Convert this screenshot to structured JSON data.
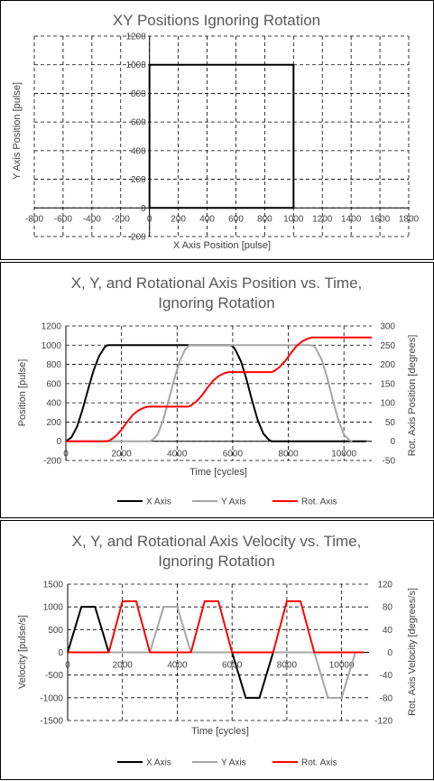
{
  "chart_data": [
    {
      "type": "line",
      "title": "XY Positions Ignoring Rotation",
      "xlabel": "X Axis Position [pulse]",
      "ylabel": "Y Axis Position [pulse]",
      "xlim": [
        -800,
        1800
      ],
      "ylim": [
        -200,
        1200
      ],
      "xticks": [
        -800,
        -600,
        -400,
        -200,
        0,
        200,
        400,
        600,
        800,
        1000,
        1200,
        1400,
        1600,
        1800
      ],
      "yticks": [
        -200,
        0,
        200,
        400,
        600,
        800,
        1000,
        1200
      ],
      "grid": true,
      "series": [
        {
          "x": [
            0,
            1000,
            1000,
            0,
            0
          ],
          "y": [
            1000,
            1000,
            0,
            0,
            1000
          ],
          "color": "#000000"
        }
      ]
    },
    {
      "type": "line",
      "title": "X, Y, and Rotational Axis Position vs. Time, Ignoring Rotation",
      "xlabel": "Time [cycles]",
      "ylabel": "Position [pulse]",
      "y2label": "Rot. Axis Position [degrees]",
      "xlim": [
        0,
        11000
      ],
      "ylim": [
        -200,
        1200
      ],
      "y2lim": [
        -50,
        300
      ],
      "xticks": [
        0,
        2000,
        4000,
        6000,
        8000,
        10000
      ],
      "yticks": [
        -200,
        0,
        200,
        400,
        600,
        800,
        1000,
        1200
      ],
      "y2ticks": [
        -50,
        0,
        50,
        100,
        150,
        200,
        250,
        300
      ],
      "grid": true,
      "legend": "bottom",
      "series": [
        {
          "name": "X Axis",
          "axis": "left",
          "color": "#000000",
          "x": [
            0,
            200,
            400,
            600,
            800,
            1000,
            1200,
            1400,
            1500,
            5900,
            6000,
            6100,
            6300,
            6500,
            6700,
            6900,
            7100,
            7300,
            7400,
            10800
          ],
          "y": [
            0,
            40,
            150,
            330,
            540,
            740,
            890,
            980,
            1000,
            1000,
            990,
            950,
            830,
            640,
            420,
            220,
            80,
            15,
            0,
            0
          ]
        },
        {
          "name": "Y Axis",
          "axis": "left",
          "color": "#a6a6a6",
          "x": [
            0,
            3000,
            3100,
            3300,
            3500,
            3700,
            3900,
            4100,
            4300,
            4450,
            8800,
            8900,
            9000,
            9200,
            9400,
            9600,
            9800,
            10000,
            10200,
            10300
          ],
          "y": [
            0,
            0,
            10,
            70,
            220,
            430,
            650,
            840,
            960,
            1000,
            1000,
            995,
            960,
            850,
            660,
            430,
            220,
            70,
            10,
            0
          ]
        },
        {
          "name": "Rot. Axis",
          "axis": "right",
          "color": "#ff0000",
          "x": [
            0,
            1500,
            1600,
            1800,
            2000,
            2200,
            2400,
            2600,
            2800,
            2950,
            4400,
            4500,
            4700,
            4900,
            5100,
            5300,
            5500,
            5700,
            5850,
            7400,
            7500,
            7700,
            7900,
            8100,
            8300,
            8500,
            8700,
            8850,
            11000
          ],
          "y": [
            0,
            0,
            3,
            14,
            30,
            50,
            68,
            80,
            87,
            90,
            90,
            93,
            104,
            120,
            140,
            158,
            170,
            177,
            180,
            180,
            183,
            194,
            210,
            230,
            248,
            260,
            267,
            270,
            270
          ]
        }
      ]
    },
    {
      "type": "line",
      "title": "X, Y, and Rotational Axis Velocity vs. Time, Ignoring Rotation",
      "xlabel": "Time [cycles]",
      "ylabel": "Velocity [pulse/s]",
      "y2label": "Rot. Axis Velocity [degrees/s]",
      "xlim": [
        0,
        11000
      ],
      "ylim": [
        -1500,
        1500
      ],
      "y2lim": [
        -120,
        120
      ],
      "xticks": [
        0,
        2000,
        4000,
        6000,
        8000,
        10000
      ],
      "yticks": [
        -1500,
        -1000,
        -500,
        0,
        500,
        1000,
        1500
      ],
      "y2ticks": [
        -120,
        -80,
        -40,
        0,
        40,
        80,
        120
      ],
      "grid": true,
      "legend": "bottom",
      "series": [
        {
          "name": "X Axis",
          "axis": "left",
          "color": "#000000",
          "x": [
            0,
            500,
            1000,
            1500,
            6000,
            6500,
            7000,
            7500,
            10800
          ],
          "y": [
            0,
            1000,
            1000,
            0,
            0,
            -1000,
            -1000,
            0,
            0
          ]
        },
        {
          "name": "Y Axis",
          "axis": "left",
          "color": "#a6a6a6",
          "x": [
            0,
            3000,
            3500,
            4000,
            4500,
            9000,
            9500,
            10000,
            10500,
            10800
          ],
          "y": [
            0,
            0,
            1000,
            1000,
            0,
            0,
            -1000,
            -1000,
            0,
            0
          ]
        },
        {
          "name": "Rot. Axis",
          "axis": "right",
          "color": "#ff0000",
          "x": [
            0,
            1500,
            2000,
            2500,
            3000,
            4500,
            5000,
            5500,
            6000,
            7500,
            8000,
            8500,
            9000,
            10800
          ],
          "y": [
            0,
            0,
            90,
            90,
            0,
            0,
            90,
            90,
            0,
            0,
            90,
            90,
            0,
            0
          ]
        }
      ]
    }
  ]
}
